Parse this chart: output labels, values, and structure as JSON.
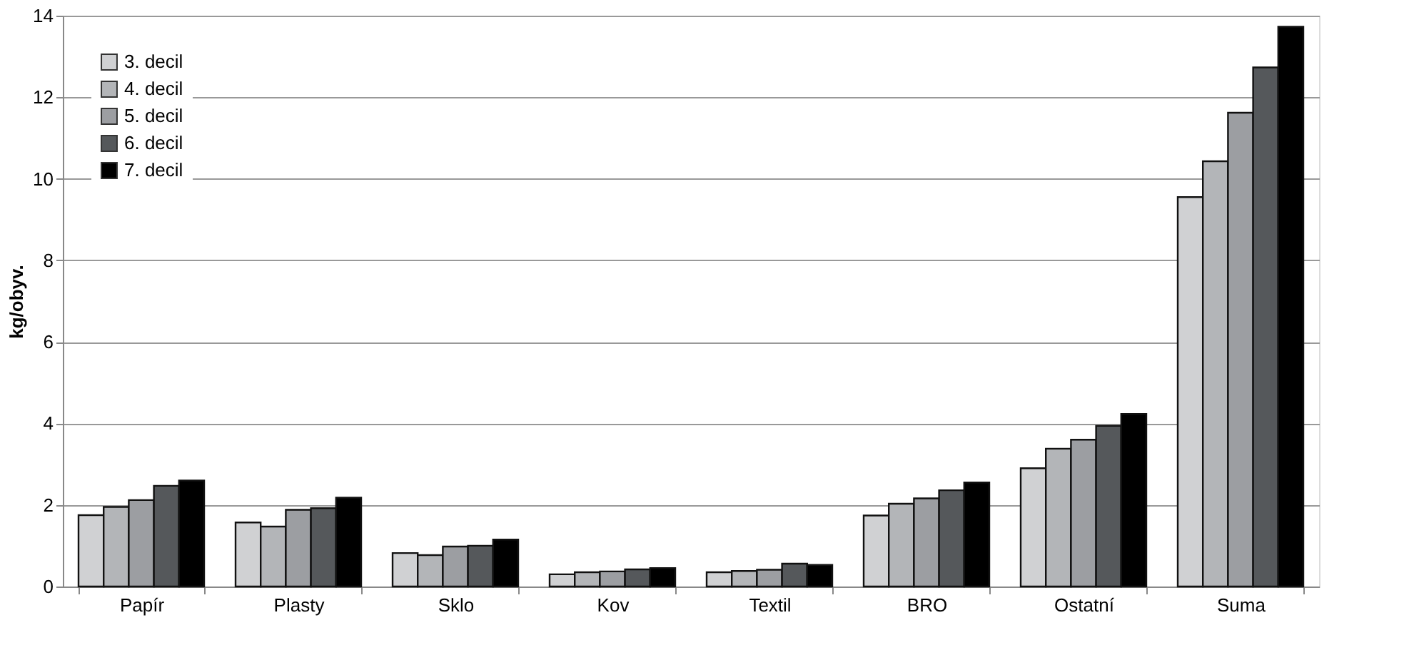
{
  "chart_data": {
    "type": "bar",
    "ylabel": "kg/obyv.",
    "categories": [
      "Papír",
      "Plasty",
      "Sklo",
      "Kov",
      "Textil",
      "BRO",
      "Ostatní",
      "Suma"
    ],
    "series": [
      {
        "name": "3. decil",
        "color": "#d0d1d3",
        "values": [
          1.75,
          1.57,
          0.82,
          0.3,
          0.35,
          1.74,
          2.9,
          9.55
        ]
      },
      {
        "name": "4. decil",
        "color": "#b3b5b8",
        "values": [
          1.95,
          1.47,
          0.77,
          0.35,
          0.38,
          2.03,
          3.38,
          10.43
        ]
      },
      {
        "name": "5. decil",
        "color": "#9c9ea2",
        "values": [
          2.12,
          1.88,
          0.98,
          0.37,
          0.41,
          2.16,
          3.6,
          11.62
        ]
      },
      {
        "name": "6. decil",
        "color": "#55585b",
        "values": [
          2.47,
          1.92,
          1.0,
          0.42,
          0.56,
          2.36,
          3.94,
          12.73
        ]
      },
      {
        "name": "7. decil",
        "color": "#000000",
        "values": [
          2.6,
          2.18,
          1.15,
          0.45,
          0.53,
          2.55,
          4.23,
          13.73
        ]
      }
    ],
    "ylim": [
      0,
      14
    ],
    "yticks": [
      0,
      2,
      4,
      6,
      8,
      10,
      12,
      14
    ],
    "grid": "y",
    "legend": "top left"
  }
}
